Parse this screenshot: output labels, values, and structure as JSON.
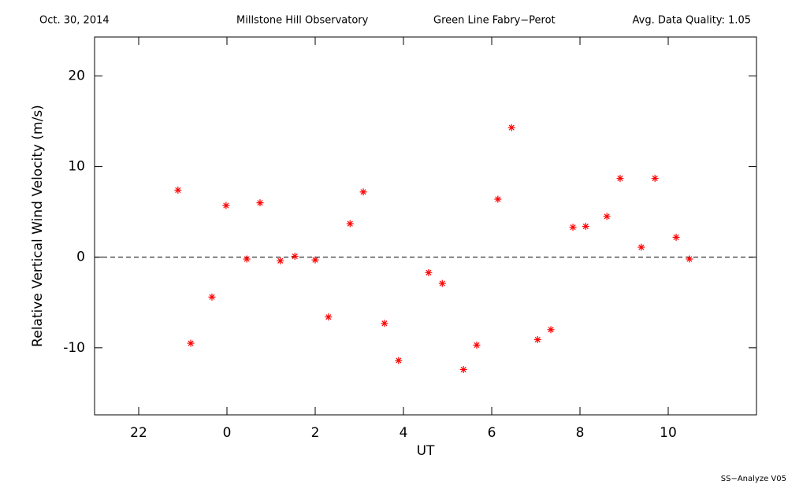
{
  "header": {
    "date": "Oct. 30, 2014",
    "site": "Millstone Hill Observatory",
    "instrument": "Green Line Fabry−Perot",
    "quality": "Avg. Data Quality: 1.05"
  },
  "footer": "SS−Analyze V05",
  "chart_data": {
    "type": "scatter",
    "x_label": "UT",
    "y_label": "Relative Vertical Wind Velocity (m/s)",
    "x": [
      -1.11,
      -0.82,
      -0.34,
      -0.02,
      0.45,
      0.75,
      1.21,
      1.54,
      2.0,
      2.3,
      2.79,
      3.09,
      3.57,
      3.89,
      4.57,
      4.88,
      5.36,
      5.66,
      6.14,
      6.45,
      7.04,
      7.34,
      7.84,
      8.13,
      8.61,
      8.91,
      9.39,
      9.7,
      10.18,
      10.48
    ],
    "values": [
      7.4,
      -9.5,
      -4.4,
      5.7,
      -0.2,
      6.0,
      -0.4,
      0.1,
      -0.3,
      -6.6,
      3.7,
      7.2,
      -7.3,
      -11.4,
      -1.7,
      -2.9,
      -12.4,
      -9.7,
      6.4,
      14.3,
      -9.1,
      -8.0,
      3.3,
      3.4,
      4.5,
      8.7,
      1.1,
      8.7,
      2.2,
      -0.2
    ],
    "color": "#ff0000",
    "xlim": [
      -3,
      12
    ],
    "xticks": [
      {
        "value": -2,
        "label": "22"
      },
      0,
      2,
      4,
      6,
      8,
      10
    ],
    "ylim": [
      -17.4,
      24.3
    ],
    "yticks": [
      -10,
      0,
      10,
      20
    ],
    "reference_line": 0
  }
}
